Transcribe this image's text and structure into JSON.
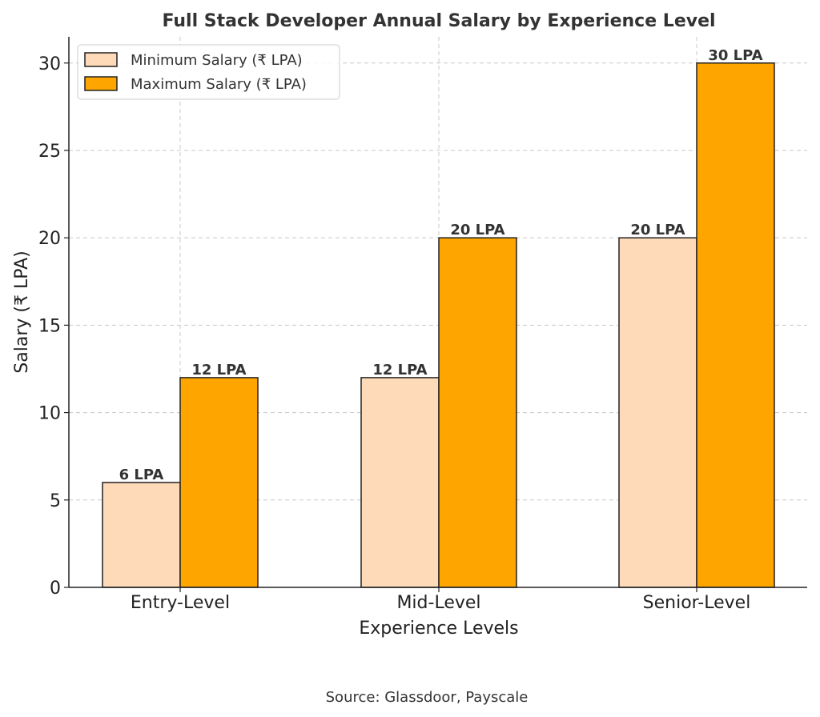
{
  "chart_data": {
    "type": "bar",
    "title": "Full Stack Developer Annual Salary by Experience Level",
    "xlabel": "Experience Levels",
    "ylabel": "Salary (₹ LPA)",
    "categories": [
      "Entry-Level",
      "Mid-Level",
      "Senior-Level"
    ],
    "series": [
      {
        "name": "Minimum Salary (₹ LPA)",
        "values": [
          6,
          12,
          20
        ],
        "labels": [
          "6 LPA",
          "12 LPA",
          "20 LPA"
        ],
        "color": "#FFDAB9"
      },
      {
        "name": "Maximum Salary (₹ LPA)",
        "values": [
          12,
          20,
          30
        ],
        "labels": [
          "12 LPA",
          "20 LPA",
          "30 LPA"
        ],
        "color": "#FFA500"
      }
    ],
    "ylim": [
      0,
      31.5
    ],
    "yticks": [
      0,
      5,
      10,
      15,
      20,
      25,
      30
    ],
    "grid": true,
    "legend_position": "top-left",
    "source": "Source: Glassdoor, Payscale"
  }
}
